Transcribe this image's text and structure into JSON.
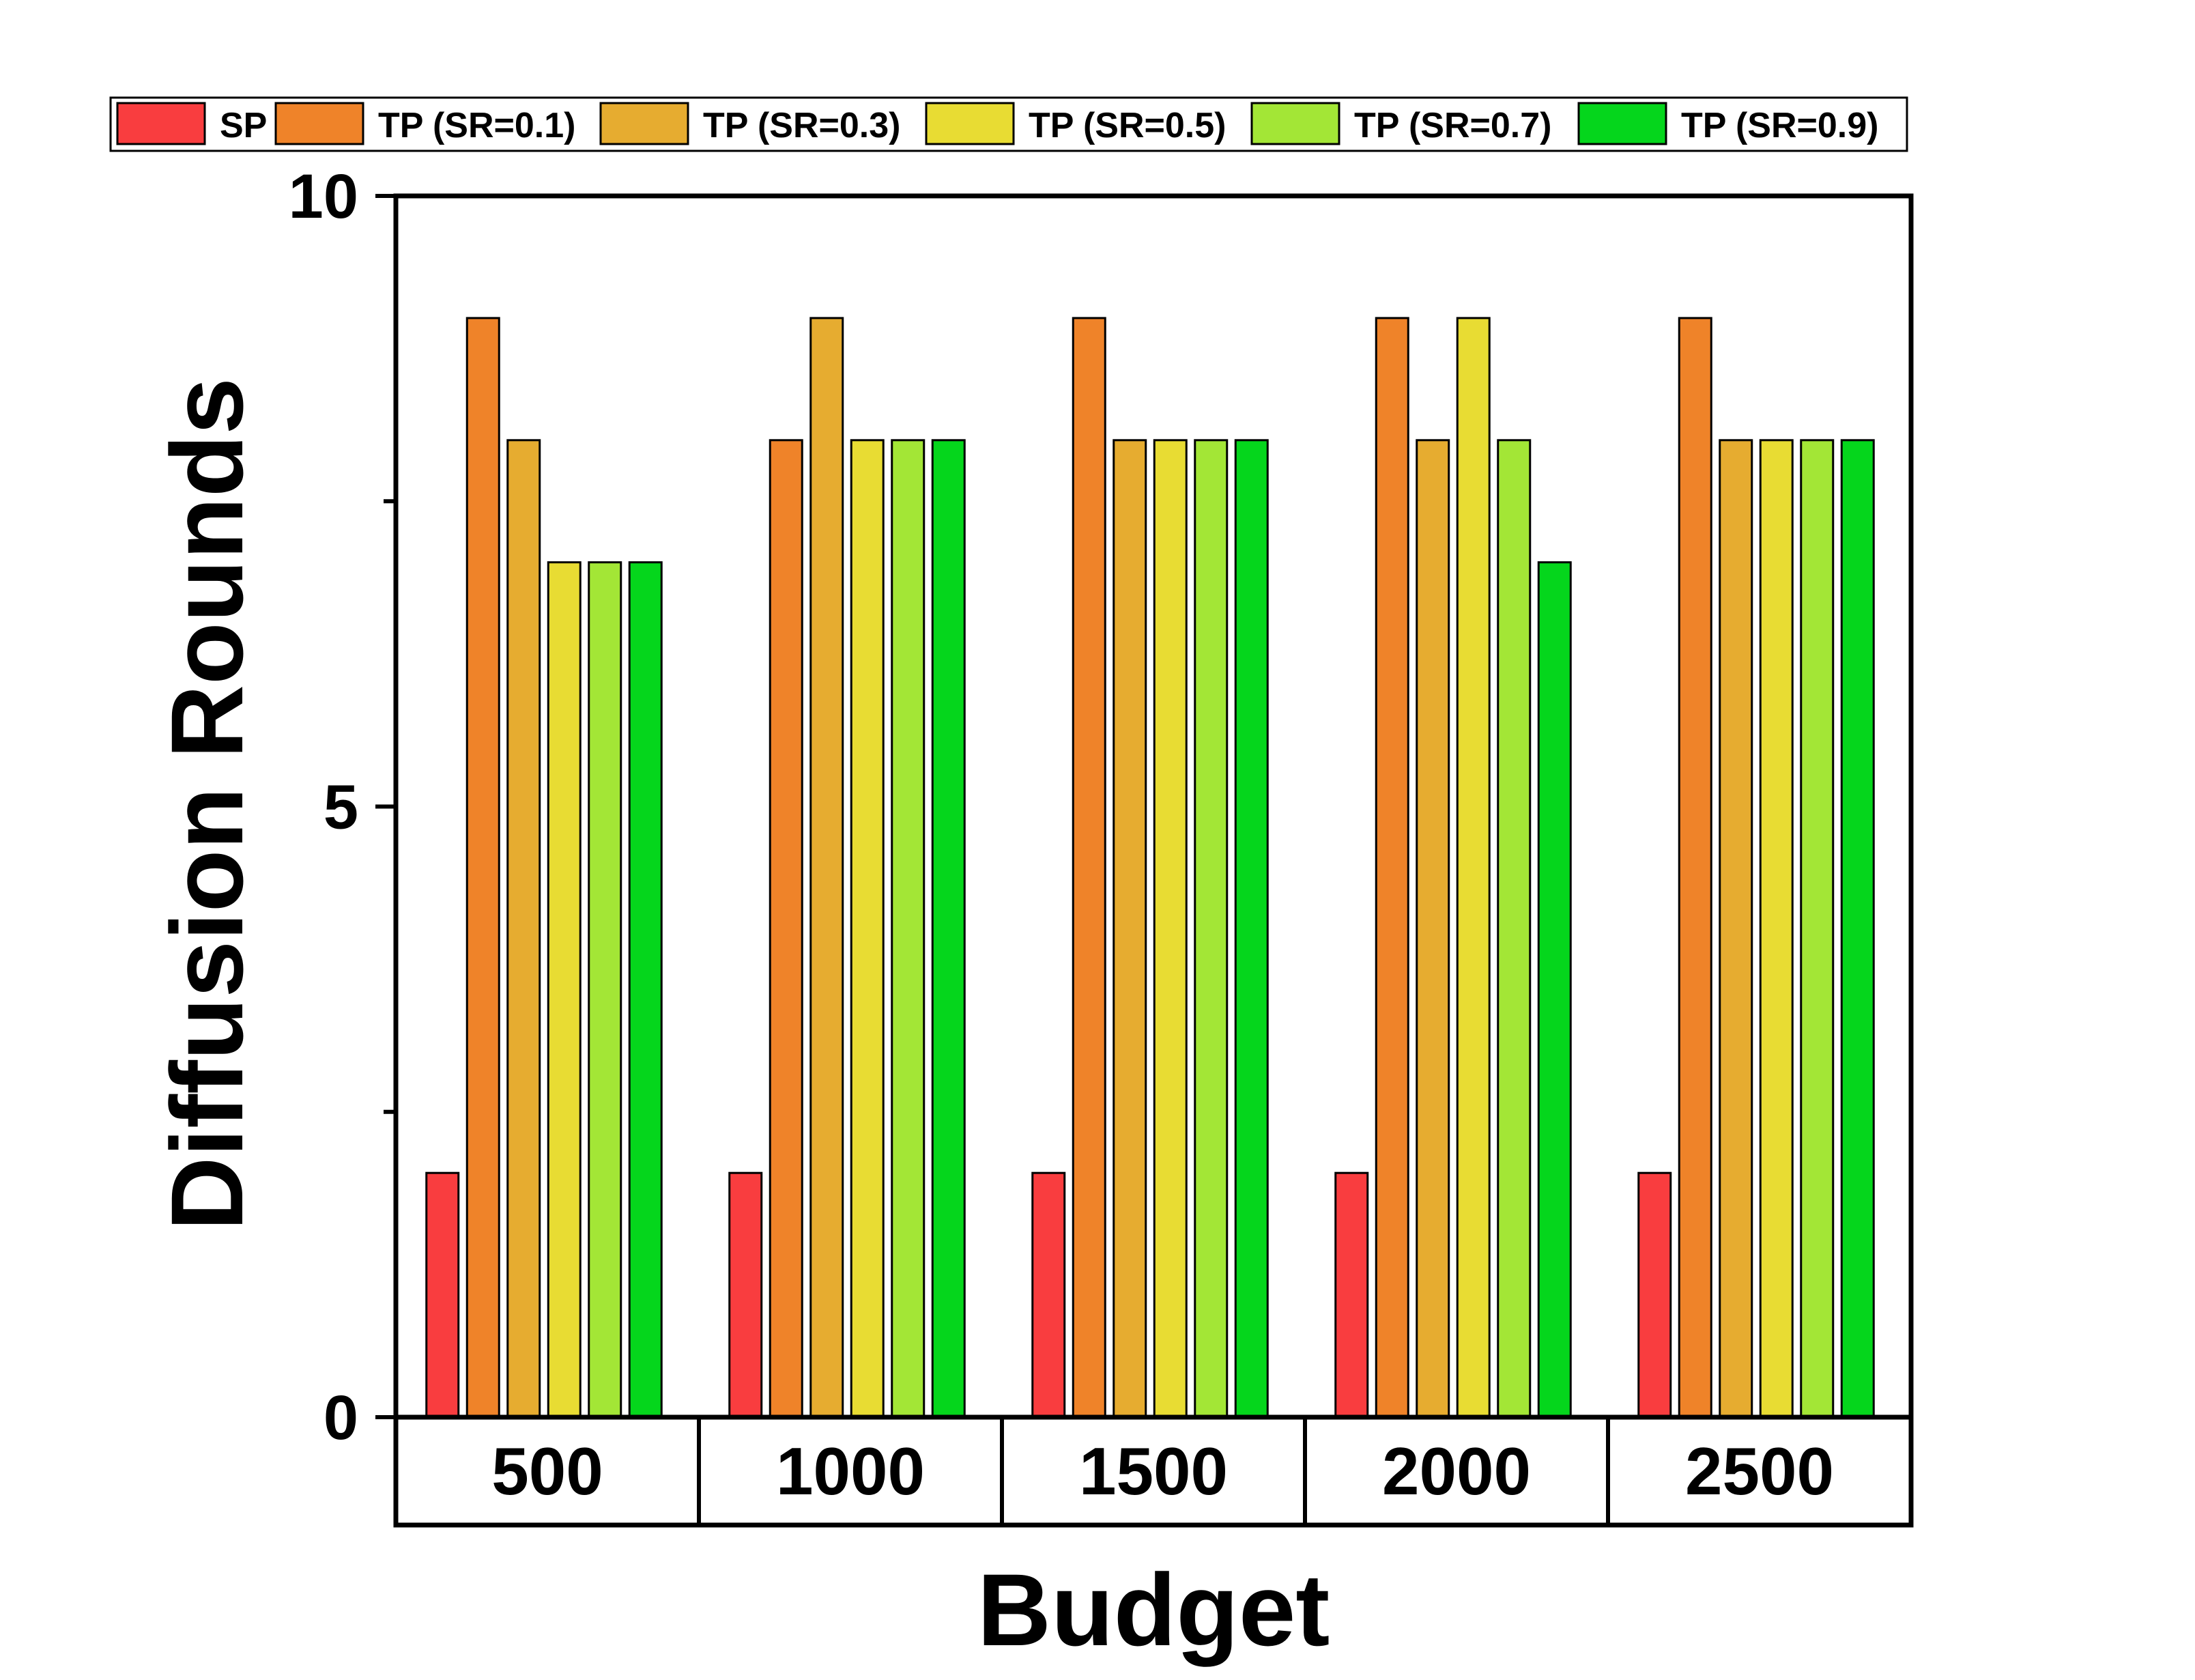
{
  "chart_data": {
    "type": "bar",
    "title": "",
    "xlabel": "Budget",
    "ylabel": "Diffusion Rounds",
    "categories": [
      "500",
      "1000",
      "1500",
      "2000",
      "2500"
    ],
    "ylim": [
      0,
      10
    ],
    "yticks": [
      0,
      5,
      10
    ],
    "ytick_labels": [
      "0",
      "5",
      "10"
    ],
    "grid": false,
    "legend_position": "top",
    "series": [
      {
        "name": "SP",
        "color": "#f93d3f",
        "values": [
          2,
          2,
          2,
          2,
          2
        ]
      },
      {
        "name": "TP (SR=0.1)",
        "color": "#ef8329",
        "values": [
          9,
          8,
          9,
          9,
          9
        ]
      },
      {
        "name": "TP (SR=0.3)",
        "color": "#e6ac30",
        "values": [
          8,
          9,
          8,
          8,
          8
        ]
      },
      {
        "name": "TP (SR=0.5)",
        "color": "#e8dc33",
        "values": [
          7,
          8,
          8,
          9,
          8
        ]
      },
      {
        "name": "TP (SR=0.7)",
        "color": "#a3e636",
        "values": [
          7,
          8,
          8,
          8,
          8
        ]
      },
      {
        "name": "TP (SR=0.9)",
        "color": "#05d61c",
        "values": [
          7,
          8,
          8,
          7,
          8
        ]
      }
    ]
  }
}
